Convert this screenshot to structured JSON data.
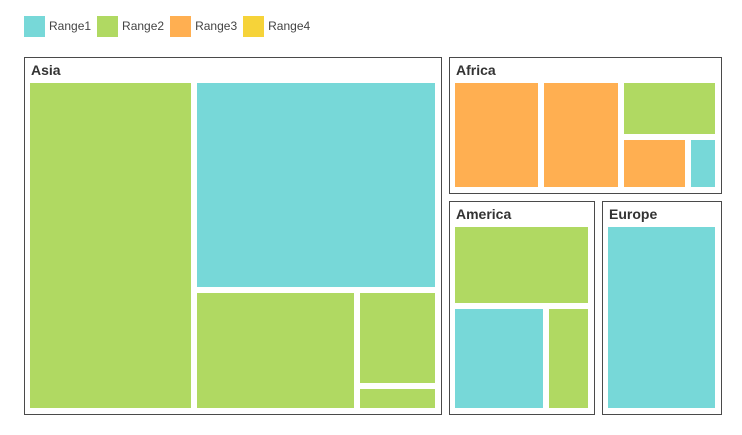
{
  "chart_data": {
    "type": "treemap",
    "title": "",
    "colors": {
      "Range1": "#77d8d8",
      "Range2": "#b0d962",
      "Range3": "#ffaf51",
      "Range4": "#f6d339"
    },
    "legend": {
      "placement": "top-left",
      "entries": [
        {
          "label": "Range1",
          "color": "#77d8d8"
        },
        {
          "label": "Range2",
          "color": "#b0d962"
        },
        {
          "label": "Range3",
          "color": "#ffaf51"
        },
        {
          "label": "Range4",
          "color": "#f6d339"
        }
      ]
    },
    "groups": [
      {
        "name": "Asia",
        "items": [
          {
            "range": "Range2",
            "value": 52
          },
          {
            "range": "Range1",
            "value": 51
          },
          {
            "range": "Range2",
            "value": 22
          },
          {
            "range": "Range2",
            "value": 8.5
          },
          {
            "range": "Range2",
            "value": 2.2
          }
        ]
      },
      {
        "name": "Africa",
        "items": [
          {
            "range": "Range3",
            "value": 8.3
          },
          {
            "range": "Range3",
            "value": 7.7
          },
          {
            "range": "Range2",
            "value": 4.8
          },
          {
            "range": "Range3",
            "value": 3.2
          },
          {
            "range": "Range1",
            "value": 1.2
          }
        ]
      },
      {
        "name": "America",
        "items": [
          {
            "range": "Range2",
            "value": 10.2
          },
          {
            "range": "Range1",
            "value": 8.7
          },
          {
            "range": "Range2",
            "value": 3.9
          }
        ]
      },
      {
        "name": "Europe",
        "items": [
          {
            "range": "Range1",
            "value": 19.5
          }
        ]
      }
    ]
  }
}
